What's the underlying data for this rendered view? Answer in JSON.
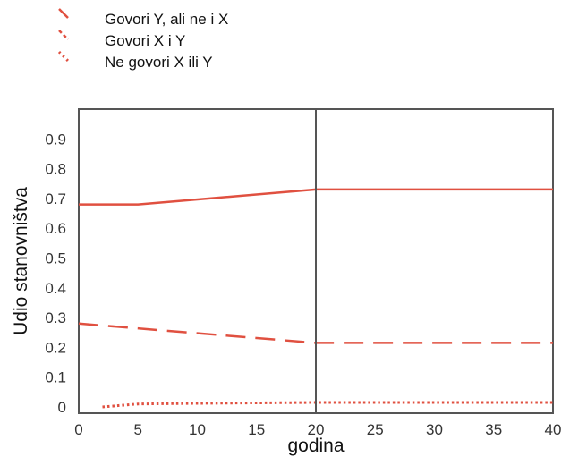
{
  "chart_data": {
    "type": "line",
    "title": "",
    "xlabel": "godina",
    "ylabel": "Udio stanovništva",
    "xlim": [
      0,
      40
    ],
    "ylim": [
      0,
      1.0
    ],
    "x_ticks": [
      0,
      5,
      10,
      15,
      20,
      25,
      30,
      35,
      40
    ],
    "y_ticks": [
      0,
      0.1,
      0.2,
      0.3,
      0.4,
      0.5,
      0.6,
      0.7,
      0.8,
      0.9
    ],
    "y_tick_labels": [
      "0",
      "0.1",
      "0.2",
      "0.3",
      "0.4",
      "0.5",
      "0.6",
      "0.7",
      "0.8",
      "0.9"
    ],
    "grid": false,
    "legend_position": "top-left, outside plot",
    "reference_line": {
      "x": 20,
      "color": "#555555"
    },
    "series": [
      {
        "name": "Govori Y, ali ne i X",
        "style": "solid",
        "color": "#e05040",
        "x": [
          0,
          5,
          20,
          40
        ],
        "y": [
          0.68,
          0.68,
          0.73,
          0.73
        ]
      },
      {
        "name": "Govori X i Y",
        "style": "dashed",
        "color": "#e05040",
        "x": [
          0,
          20,
          40
        ],
        "y": [
          0.28,
          0.215,
          0.215
        ]
      },
      {
        "name": "Ne govori X ili Y",
        "style": "dotted",
        "color": "#e05040",
        "x": [
          2,
          5,
          10,
          20,
          40
        ],
        "y": [
          0,
          0.01,
          0.012,
          0.015,
          0.015
        ]
      }
    ]
  }
}
